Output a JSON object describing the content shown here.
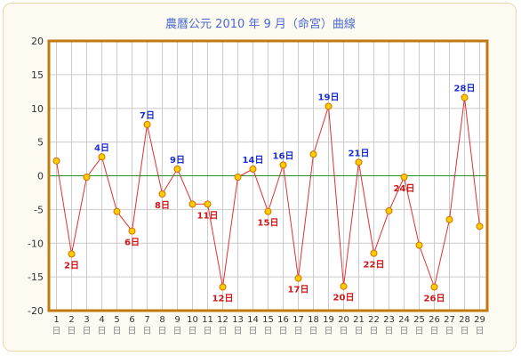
{
  "chart_data": {
    "type": "line",
    "title": "農曆公元 2010 年 9 月（命宮）曲線",
    "ylim": [
      -20,
      20
    ],
    "yticks": [
      20,
      15,
      10,
      5,
      0,
      -5,
      -10,
      -15,
      -20
    ],
    "x_day_suffix": "日",
    "grid": true,
    "categories": [
      "1",
      "2",
      "3",
      "4",
      "5",
      "6",
      "7",
      "8",
      "9",
      "10",
      "11",
      "12",
      "13",
      "14",
      "15",
      "16",
      "17",
      "18",
      "19",
      "20",
      "21",
      "22",
      "23",
      "24",
      "25",
      "26",
      "27",
      "28",
      "29"
    ],
    "values": [
      2.2,
      -11.6,
      -0.2,
      2.8,
      -5.3,
      -8.2,
      7.6,
      -2.7,
      1.0,
      -4.2,
      -4.2,
      -16.5,
      -0.2,
      1.0,
      -5.3,
      1.6,
      -15.2,
      3.2,
      10.3,
      -16.4,
      2.0,
      -11.5,
      -5.2,
      -0.2,
      -10.3,
      -16.5,
      -6.5,
      11.6,
      -7.5
    ],
    "point_labels": {
      "2": "2日",
      "4": "4日",
      "6": "6日",
      "7": "7日",
      "8": "8日",
      "9": "9日",
      "11": "11日",
      "12": "12日",
      "14": "14日",
      "15": "15日",
      "16": "16日",
      "17": "17日",
      "19": "19日",
      "20": "20日",
      "21": "21日",
      "22": "22日",
      "24": "24日",
      "26": "26日",
      "28": "28日"
    },
    "colors": {
      "title": "#4a6ad0",
      "frame": "#c07a10",
      "grid": "#cccccc",
      "zero_line": "#2f8f2f",
      "line": "#e03030",
      "point_fill": "#ffcc00",
      "point_stroke": "#d07000",
      "label_high": "#1a2fd0",
      "label_low": "#d01818",
      "axis_text": "#333333"
    }
  }
}
